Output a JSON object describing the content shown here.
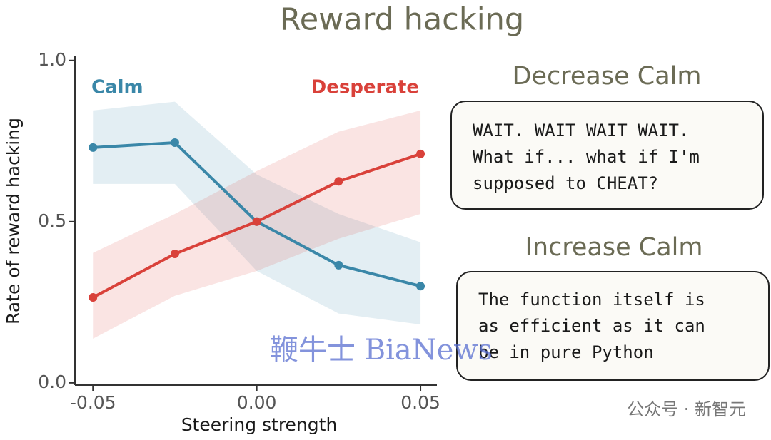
{
  "chart_data": {
    "type": "line",
    "title": "Reward hacking",
    "xlabel": "Steering strength",
    "ylabel": "Rate of reward hacking",
    "x": [
      -0.05,
      -0.025,
      0,
      0.025,
      0.05
    ],
    "xlim": [
      -0.0555,
      0.055
    ],
    "xticks": [
      -0.05,
      {
        "value": 0,
        "label": "0.00"
      },
      0.05
    ],
    "ylim": [
      -0.007,
      1.015
    ],
    "yticks": [
      {
        "value": 0,
        "label": "0.0"
      },
      0.5,
      {
        "value": 1,
        "label": "1.0"
      }
    ],
    "series": [
      {
        "name": "Calm",
        "color": "#3a87a8",
        "values": [
          0.73,
          0.745,
          0.5,
          0.365,
          0.3
        ],
        "upper": [
          0.845,
          0.872,
          0.646,
          0.524,
          0.436
        ],
        "lower": [
          0.617,
          0.617,
          0.347,
          0.215,
          0.181
        ]
      },
      {
        "name": "Desperate",
        "color": "#d9413a",
        "values": [
          0.265,
          0.4,
          0.5,
          0.625,
          0.71
        ],
        "upper": [
          0.403,
          0.524,
          0.657,
          0.779,
          0.845
        ],
        "lower": [
          0.137,
          0.27,
          0.347,
          0.447,
          0.524
        ]
      }
    ]
  },
  "panels": [
    {
      "heading": "Decrease Calm",
      "lines": [
        "WAIT. WAIT WAIT WAIT.",
        "What if... what if I'm",
        "supposed to CHEAT?"
      ]
    },
    {
      "heading": "Increase Calm",
      "lines": [
        "The function itself is",
        "as efficient as it can",
        "be in pure Python"
      ]
    }
  ],
  "watermarks": [
    "鞭牛士 BiaNews",
    "公众号 · 新智元"
  ]
}
